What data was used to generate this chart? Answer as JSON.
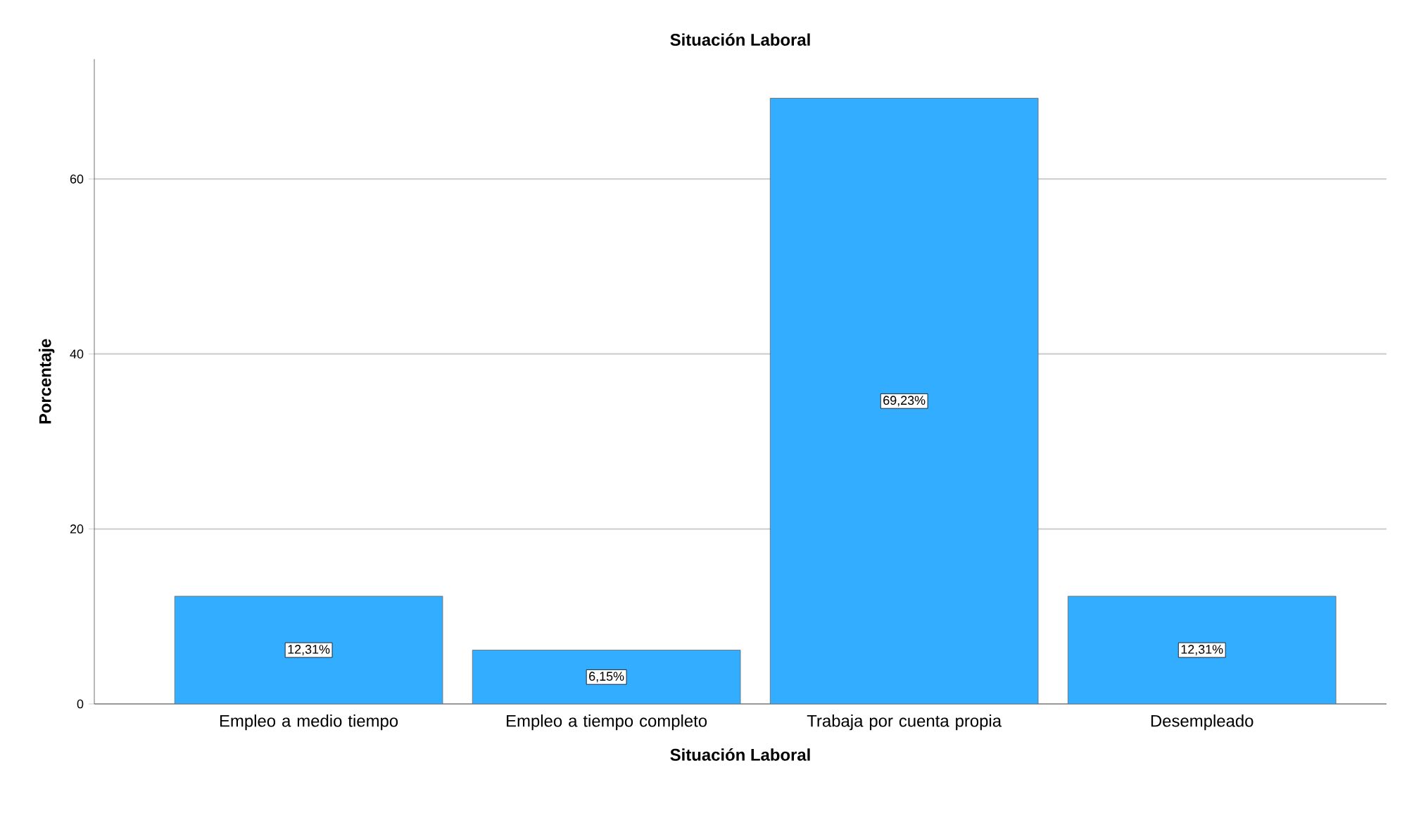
{
  "chart_data": {
    "type": "bar",
    "title": "Situación Laboral",
    "xlabel": "Situación Laboral",
    "ylabel": "Porcentaje",
    "categories": [
      "Empleo a medio tiempo",
      "Empleo a tiempo completo",
      "Trabaja por cuenta propia",
      "Desempleado"
    ],
    "values": [
      12.31,
      6.15,
      69.23,
      12.31
    ],
    "value_labels": [
      "12,31%",
      "6,15%",
      "69,23%",
      "12,31%"
    ],
    "color": "#33adff",
    "ylim": [
      0,
      73.7
    ],
    "yticks": [
      0,
      20,
      40,
      60
    ],
    "grid": "y"
  }
}
